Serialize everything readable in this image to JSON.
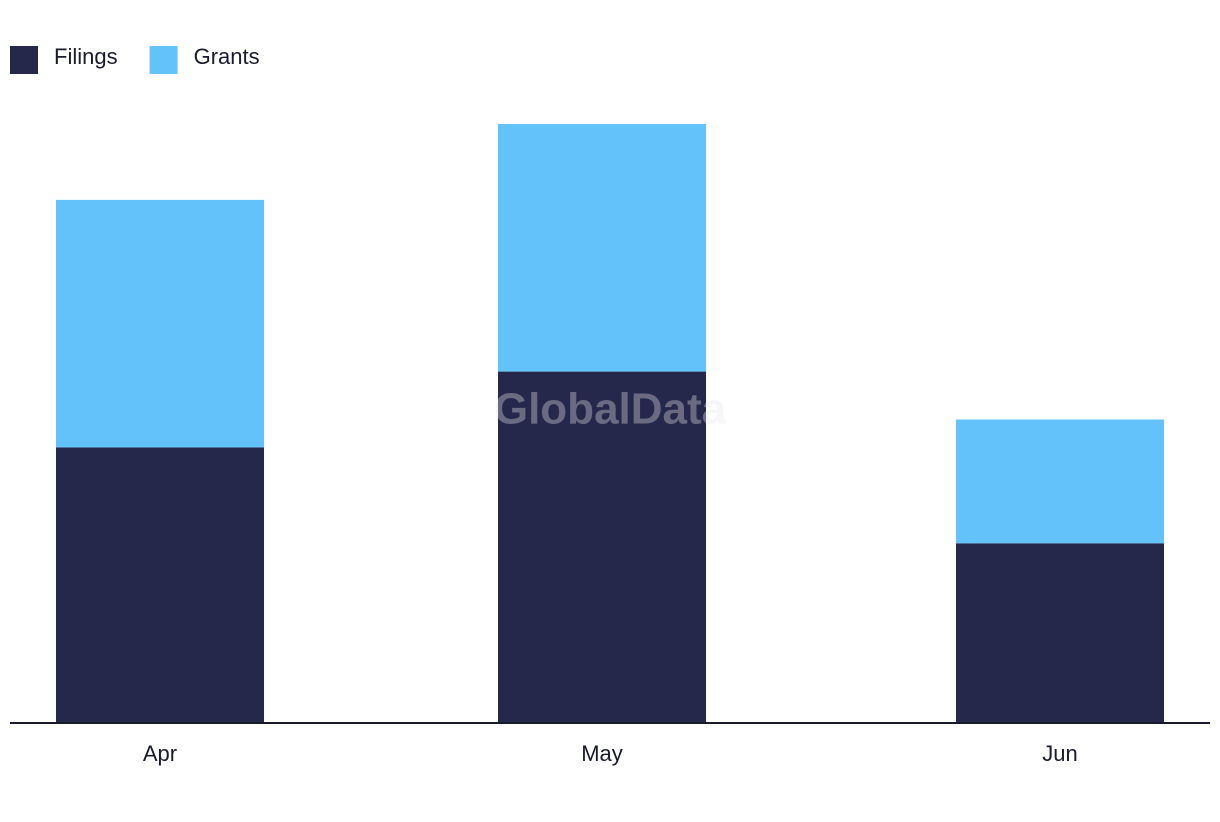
{
  "chart_data": {
    "type": "stacked-bar",
    "watermark": "GlobalData",
    "categories": [
      "Apr",
      "May",
      "Jun"
    ],
    "series": [
      {
        "name": "Filings",
        "color": "#26284b",
        "values": [
          69,
          88,
          45
        ]
      },
      {
        "name": "Grants",
        "color": "#62c2f9",
        "values": [
          62,
          62,
          31
        ]
      }
    ],
    "legend": "top-left"
  }
}
